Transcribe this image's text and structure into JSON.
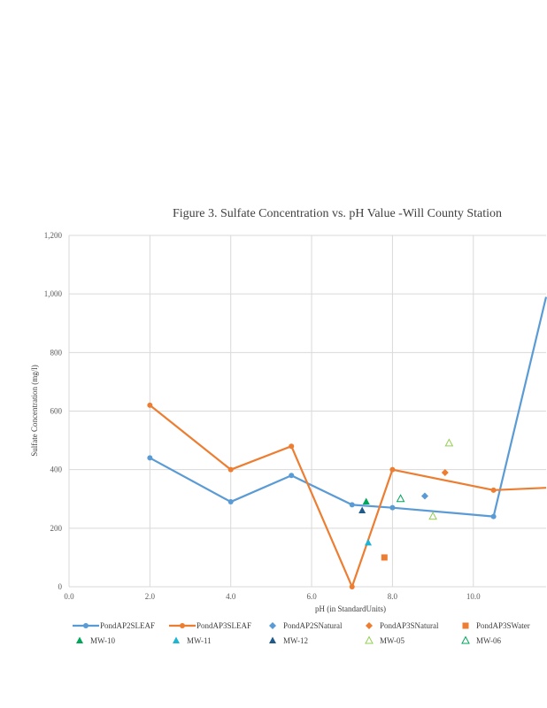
{
  "chart_data": {
    "type": "scatter",
    "title": "Figure 3. Sulfate Concentration  vs. pH Value  -Will County Station",
    "xlabel": "pH (in StandardUnits)",
    "ylabel": "Sulfate  Concentration  (mg/l)",
    "xlim": [
      0,
      11.8
    ],
    "ylim": [
      0,
      1200
    ],
    "x_ticks": [
      "0.0",
      "2.0",
      "4.0",
      "6.0",
      "8.0",
      "10.0"
    ],
    "x_tick_values": [
      0,
      2,
      4,
      6,
      8,
      10
    ],
    "y_ticks": [
      "0",
      "200",
      "400",
      "600",
      "800",
      "1,000",
      "1,200"
    ],
    "y_tick_values": [
      0,
      200,
      400,
      600,
      800,
      1000,
      1200
    ],
    "grid": true,
    "legend_position": "bottom",
    "series": [
      {
        "name": "PondAP2SLEAF",
        "kind": "line",
        "color": "#5b9bd5",
        "marker": "circle",
        "x": [
          2.0,
          4.0,
          5.5,
          7.0,
          8.0,
          10.5,
          11.8
        ],
        "y": [
          440,
          290,
          380,
          280,
          270,
          240,
          990
        ]
      },
      {
        "name": "PondAP3SLEAF",
        "kind": "line",
        "color": "#ed7d31",
        "marker": "circle",
        "x": [
          2.0,
          4.0,
          5.5,
          7.0,
          8.0,
          10.5,
          11.8
        ],
        "y": [
          620,
          400,
          480,
          0,
          400,
          330,
          338
        ]
      },
      {
        "name": "PondAP2SNatural",
        "kind": "scatter",
        "color": "#5b9bd5",
        "marker": "diamond",
        "x": [
          8.8
        ],
        "y": [
          310
        ]
      },
      {
        "name": "PondAP3SNatural",
        "kind": "scatter",
        "color": "#ed7d31",
        "marker": "diamond",
        "x": [
          9.3
        ],
        "y": [
          390
        ]
      },
      {
        "name": "PondAP3SWater",
        "kind": "scatter",
        "color": "#ed7d31",
        "marker": "square",
        "x": [
          7.8
        ],
        "y": [
          100
        ]
      },
      {
        "name": "MW-10",
        "kind": "scatter",
        "color": "#00a65a",
        "marker": "triangle",
        "x": [
          7.35
        ],
        "y": [
          290
        ]
      },
      {
        "name": "MW-11",
        "kind": "scatter",
        "color": "#1eb4d4",
        "marker": "triangle",
        "x": [
          7.4
        ],
        "y": [
          150
        ]
      },
      {
        "name": "MW-12",
        "kind": "scatter",
        "color": "#1f5a8a",
        "marker": "triangle",
        "x": [
          7.25
        ],
        "y": [
          260
        ]
      },
      {
        "name": "MW-05",
        "kind": "scatter",
        "color": "#92d050",
        "marker": "triangle-open",
        "x": [
          9.4,
          9.0
        ],
        "y": [
          490,
          240
        ]
      },
      {
        "name": "MW-06",
        "kind": "scatter",
        "color": "#00a65a",
        "marker": "triangle-open",
        "x": [
          8.2
        ],
        "y": [
          300
        ]
      }
    ]
  }
}
